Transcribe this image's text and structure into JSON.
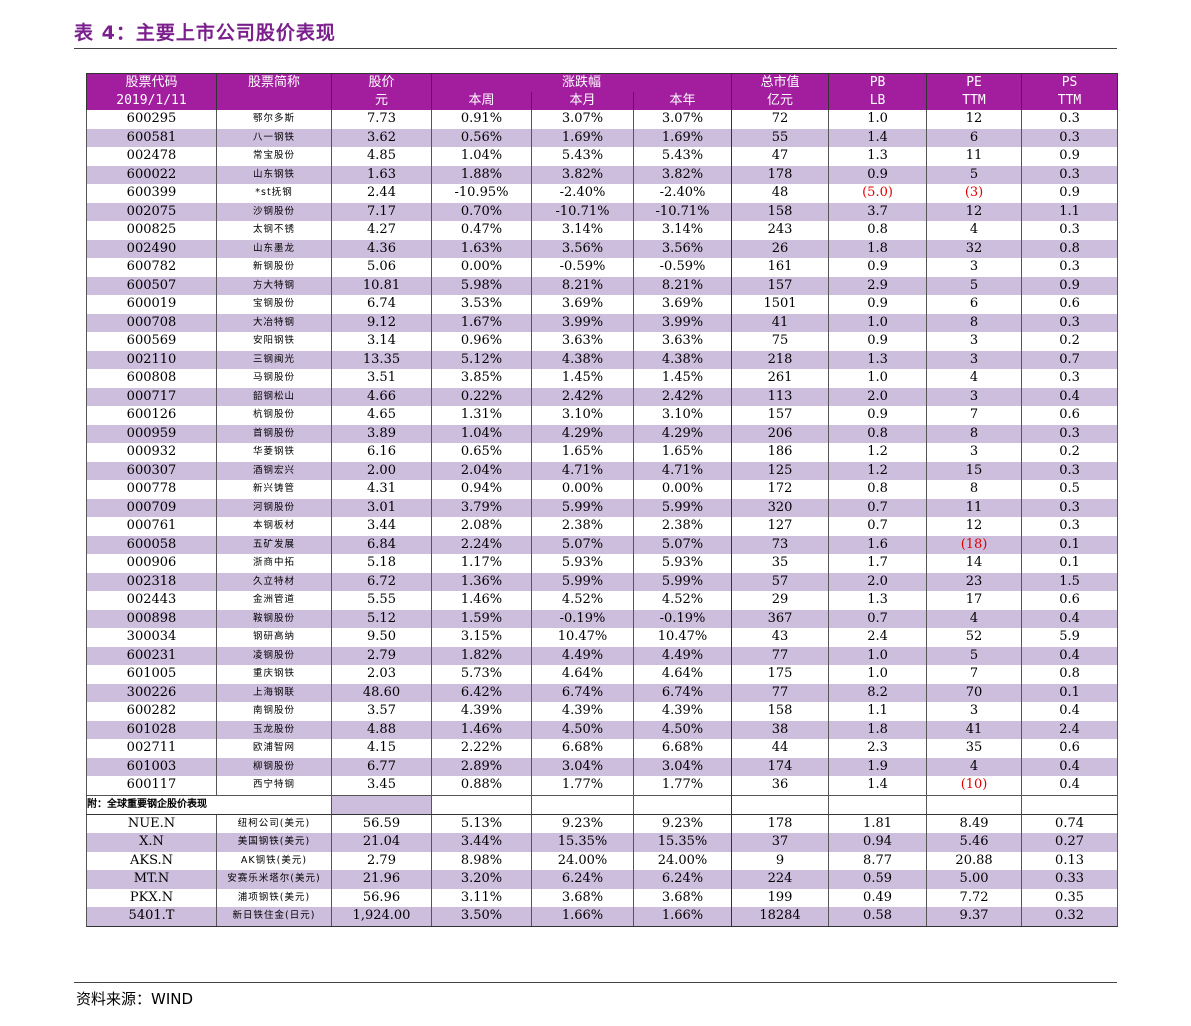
{
  "title": "表 4：主要上市公司股价表现",
  "source": "资料来源：WIND",
  "note": "附：全球重要钢企股价表现",
  "header": {
    "code": "股票代码",
    "date": "2019/1/11",
    "name": "股票简称",
    "price": "股价",
    "price_unit": "元",
    "change": "涨跌幅",
    "week": "本周",
    "month": "本月",
    "year": "本年",
    "mcap": "总市值",
    "mcap_unit": "亿元",
    "pb": "PB",
    "pb_sub": "LB",
    "pe": "PE",
    "pe_sub": "TTM",
    "ps": "PS",
    "ps_sub": "TTM"
  },
  "rows": [
    [
      "600295",
      "鄂尔多斯",
      "7.73",
      "0.91%",
      "3.07%",
      "3.07%",
      "72",
      "1.0",
      "12",
      "0.3"
    ],
    [
      "600581",
      "八一钢铁",
      "3.62",
      "0.56%",
      "1.69%",
      "1.69%",
      "55",
      "1.4",
      "6",
      "0.3"
    ],
    [
      "002478",
      "常宝股份",
      "4.85",
      "1.04%",
      "5.43%",
      "5.43%",
      "47",
      "1.3",
      "11",
      "0.9"
    ],
    [
      "600022",
      "山东钢铁",
      "1.63",
      "1.88%",
      "3.82%",
      "3.82%",
      "178",
      "0.9",
      "5",
      "0.3"
    ],
    [
      "600399",
      "*st抚钢",
      "2.44",
      "-10.95%",
      "-2.40%",
      "-2.40%",
      "48",
      "(5.0)",
      "(3)",
      "0.9"
    ],
    [
      "002075",
      "沙钢股份",
      "7.17",
      "0.70%",
      "-10.71%",
      "-10.71%",
      "158",
      "3.7",
      "12",
      "1.1"
    ],
    [
      "000825",
      "太钢不锈",
      "4.27",
      "0.47%",
      "3.14%",
      "3.14%",
      "243",
      "0.8",
      "4",
      "0.3"
    ],
    [
      "002490",
      "山东墨龙",
      "4.36",
      "1.63%",
      "3.56%",
      "3.56%",
      "26",
      "1.8",
      "32",
      "0.8"
    ],
    [
      "600782",
      "新钢股份",
      "5.06",
      "0.00%",
      "-0.59%",
      "-0.59%",
      "161",
      "0.9",
      "3",
      "0.3"
    ],
    [
      "600507",
      "方大特钢",
      "10.81",
      "5.98%",
      "8.21%",
      "8.21%",
      "157",
      "2.9",
      "5",
      "0.9"
    ],
    [
      "600019",
      "宝钢股份",
      "6.74",
      "3.53%",
      "3.69%",
      "3.69%",
      "1501",
      "0.9",
      "6",
      "0.6"
    ],
    [
      "000708",
      "大冶特钢",
      "9.12",
      "1.67%",
      "3.99%",
      "3.99%",
      "41",
      "1.0",
      "8",
      "0.3"
    ],
    [
      "600569",
      "安阳钢铁",
      "3.14",
      "0.96%",
      "3.63%",
      "3.63%",
      "75",
      "0.9",
      "3",
      "0.2"
    ],
    [
      "002110",
      "三钢闽光",
      "13.35",
      "5.12%",
      "4.38%",
      "4.38%",
      "218",
      "1.3",
      "3",
      "0.7"
    ],
    [
      "600808",
      "马钢股份",
      "3.51",
      "3.85%",
      "1.45%",
      "1.45%",
      "261",
      "1.0",
      "4",
      "0.3"
    ],
    [
      "000717",
      "韶钢松山",
      "4.66",
      "0.22%",
      "2.42%",
      "2.42%",
      "113",
      "2.0",
      "3",
      "0.4"
    ],
    [
      "600126",
      "杭钢股份",
      "4.65",
      "1.31%",
      "3.10%",
      "3.10%",
      "157",
      "0.9",
      "7",
      "0.6"
    ],
    [
      "000959",
      "首钢股份",
      "3.89",
      "1.04%",
      "4.29%",
      "4.29%",
      "206",
      "0.8",
      "8",
      "0.3"
    ],
    [
      "000932",
      "华菱钢铁",
      "6.16",
      "0.65%",
      "1.65%",
      "1.65%",
      "186",
      "1.2",
      "3",
      "0.2"
    ],
    [
      "600307",
      "酒钢宏兴",
      "2.00",
      "2.04%",
      "4.71%",
      "4.71%",
      "125",
      "1.2",
      "15",
      "0.3"
    ],
    [
      "000778",
      "新兴铸管",
      "4.31",
      "0.94%",
      "0.00%",
      "0.00%",
      "172",
      "0.8",
      "8",
      "0.5"
    ],
    [
      "000709",
      "河钢股份",
      "3.01",
      "3.79%",
      "5.99%",
      "5.99%",
      "320",
      "0.7",
      "11",
      "0.3"
    ],
    [
      "000761",
      "本钢板材",
      "3.44",
      "2.08%",
      "2.38%",
      "2.38%",
      "127",
      "0.7",
      "12",
      "0.3"
    ],
    [
      "600058",
      "五矿发展",
      "6.84",
      "2.24%",
      "5.07%",
      "5.07%",
      "73",
      "1.6",
      "(18)",
      "0.1"
    ],
    [
      "000906",
      "浙商中拓",
      "5.18",
      "1.17%",
      "5.93%",
      "5.93%",
      "35",
      "1.7",
      "14",
      "0.1"
    ],
    [
      "002318",
      "久立特材",
      "6.72",
      "1.36%",
      "5.99%",
      "5.99%",
      "57",
      "2.0",
      "23",
      "1.5"
    ],
    [
      "002443",
      "金洲管道",
      "5.55",
      "1.46%",
      "4.52%",
      "4.52%",
      "29",
      "1.3",
      "17",
      "0.6"
    ],
    [
      "000898",
      "鞍钢股份",
      "5.12",
      "1.59%",
      "-0.19%",
      "-0.19%",
      "367",
      "0.7",
      "4",
      "0.4"
    ],
    [
      "300034",
      "钢研高纳",
      "9.50",
      "3.15%",
      "10.47%",
      "10.47%",
      "43",
      "2.4",
      "52",
      "5.9"
    ],
    [
      "600231",
      "凌钢股份",
      "2.79",
      "1.82%",
      "4.49%",
      "4.49%",
      "77",
      "1.0",
      "5",
      "0.4"
    ],
    [
      "601005",
      "重庆钢铁",
      "2.03",
      "5.73%",
      "4.64%",
      "4.64%",
      "175",
      "1.0",
      "7",
      "0.8"
    ],
    [
      "300226",
      "上海钢联",
      "48.60",
      "6.42%",
      "6.74%",
      "6.74%",
      "77",
      "8.2",
      "70",
      "0.1"
    ],
    [
      "600282",
      "南钢股份",
      "3.57",
      "4.39%",
      "4.39%",
      "4.39%",
      "158",
      "1.1",
      "3",
      "0.4"
    ],
    [
      "601028",
      "玉龙股份",
      "4.88",
      "1.46%",
      "4.50%",
      "4.50%",
      "38",
      "1.8",
      "41",
      "2.4"
    ],
    [
      "002711",
      "欧浦智网",
      "4.15",
      "2.22%",
      "6.68%",
      "6.68%",
      "44",
      "2.3",
      "35",
      "0.6"
    ],
    [
      "601003",
      "柳钢股份",
      "6.77",
      "2.89%",
      "3.04%",
      "3.04%",
      "174",
      "1.9",
      "4",
      "0.4"
    ],
    [
      "600117",
      "西宁特钢",
      "3.45",
      "0.88%",
      "1.77%",
      "1.77%",
      "36",
      "1.4",
      "(10)",
      "0.4"
    ]
  ],
  "global_rows": [
    [
      "NUE.N",
      "纽柯公司(美元)",
      "56.59",
      "5.13%",
      "9.23%",
      "9.23%",
      "178",
      "1.81",
      "8.49",
      "0.74"
    ],
    [
      "X.N",
      "美国钢铁(美元)",
      "21.04",
      "3.44%",
      "15.35%",
      "15.35%",
      "37",
      "0.94",
      "5.46",
      "0.27"
    ],
    [
      "AKS.N",
      "AK钢铁(美元)",
      "2.79",
      "8.98%",
      "24.00%",
      "24.00%",
      "9",
      "8.77",
      "20.88",
      "0.13"
    ],
    [
      "MT.N",
      "安赛乐米塔尔(美元)",
      "21.96",
      "3.20%",
      "6.24%",
      "6.24%",
      "224",
      "0.59",
      "5.00",
      "0.33"
    ],
    [
      "PKX.N",
      "浦项钢铁(美元)",
      "56.96",
      "3.11%",
      "3.68%",
      "3.68%",
      "199",
      "0.49",
      "7.72",
      "0.35"
    ],
    [
      "5401.T",
      "新日铁住金(日元)",
      "1,924.00",
      "3.50%",
      "1.66%",
      "1.66%",
      "18284",
      "0.58",
      "9.37",
      "0.32"
    ]
  ]
}
